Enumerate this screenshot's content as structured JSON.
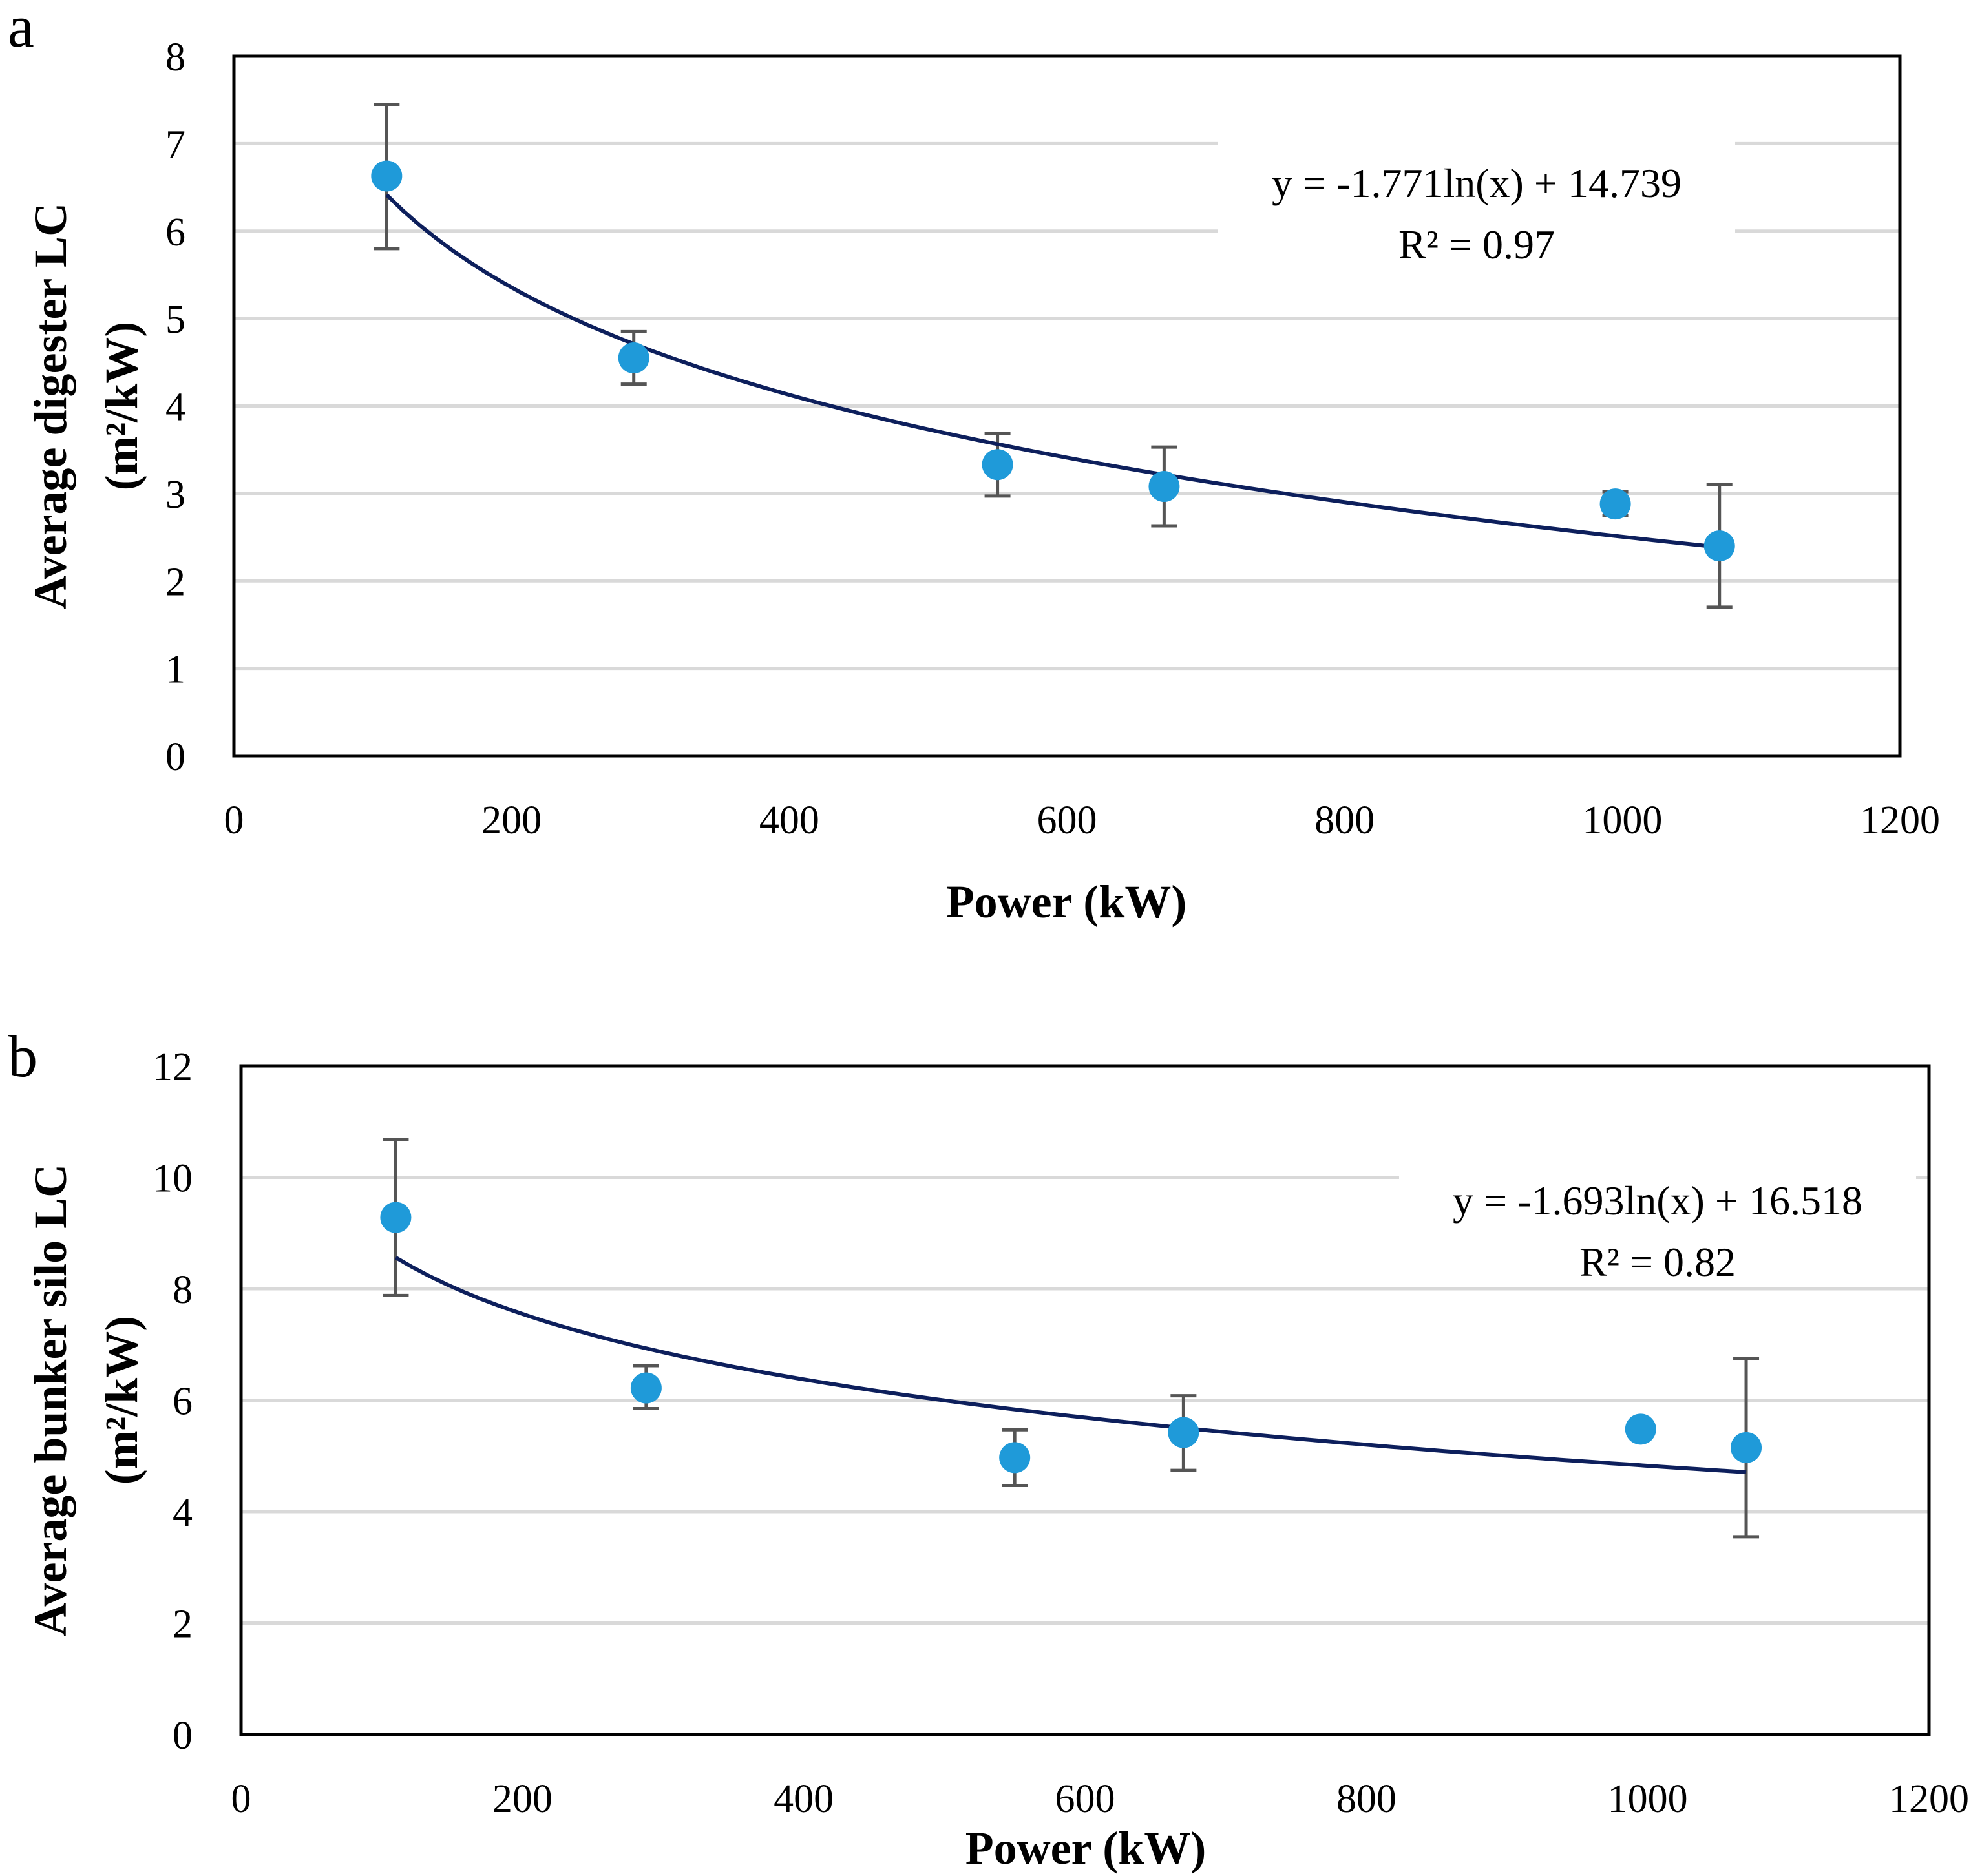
{
  "colors": {
    "marker": "#1f9ad9",
    "trendline": "#0d1f5c",
    "errorbar": "#555555",
    "grid": "#d9d9d9",
    "frame": "#000000"
  },
  "chart_data": [
    {
      "panel": "a",
      "type": "scatter",
      "xlabel": "Power (kW)",
      "ylabel_line1": "Average digester LC",
      "ylabel_line2": "(m²/kW)",
      "xlim": [
        0,
        1200
      ],
      "ylim": [
        0,
        8
      ],
      "xticks": [
        0,
        200,
        400,
        600,
        800,
        1000,
        1200
      ],
      "xtick_labels": [
        "0",
        "200",
        "400",
        "600",
        "800",
        "1000",
        "1200"
      ],
      "yticks": [
        0,
        1,
        2,
        3,
        4,
        5,
        6,
        7,
        8
      ],
      "ytick_labels": [
        "0",
        "1",
        "2",
        "3",
        "4",
        "5",
        "6",
        "7",
        "8"
      ],
      "grid": true,
      "points": [
        {
          "x": 110,
          "y": 6.63,
          "err_low": 5.8,
          "err_high": 7.45
        },
        {
          "x": 288,
          "y": 4.55,
          "err_low": 4.25,
          "err_high": 4.85
        },
        {
          "x": 550,
          "y": 3.33,
          "err_low": 2.97,
          "err_high": 3.69
        },
        {
          "x": 670,
          "y": 3.08,
          "err_low": 2.63,
          "err_high": 3.53
        },
        {
          "x": 995,
          "y": 2.88,
          "err_low": 2.75,
          "err_high": 3.02
        },
        {
          "x": 1070,
          "y": 2.4,
          "err_low": 1.7,
          "err_high": 3.1
        }
      ],
      "trendline": {
        "type": "logarithmic",
        "a": -1.771,
        "b": 14.739,
        "x_start": 110,
        "x_end": 1070
      },
      "equation": "y = -1.771ln(x) + 14.739",
      "r_squared": "R² = 0.97"
    },
    {
      "panel": "b",
      "type": "scatter",
      "xlabel": "Power (kW)",
      "ylabel_line1": "Average bunker silo LC",
      "ylabel_line2": "(m²/kW)",
      "xlim": [
        0,
        1200
      ],
      "ylim": [
        0,
        12
      ],
      "xticks": [
        0,
        200,
        400,
        600,
        800,
        1000,
        1200
      ],
      "xtick_labels": [
        "0",
        "200",
        "400",
        "600",
        "800",
        "1000",
        "1200"
      ],
      "yticks": [
        0,
        2,
        4,
        6,
        8,
        10,
        12
      ],
      "ytick_labels": [
        "0",
        "2",
        "4",
        "6",
        "8",
        "10",
        "12"
      ],
      "grid": true,
      "points": [
        {
          "x": 110,
          "y": 9.28,
          "err_low": 7.88,
          "err_high": 10.68
        },
        {
          "x": 288,
          "y": 6.22,
          "err_low": 5.85,
          "err_high": 6.62
        },
        {
          "x": 550,
          "y": 4.97,
          "err_low": 4.47,
          "err_high": 5.47
        },
        {
          "x": 670,
          "y": 5.42,
          "err_low": 4.74,
          "err_high": 6.08
        },
        {
          "x": 995,
          "y": 5.48,
          "err_low": 5.42,
          "err_high": 5.56
        },
        {
          "x": 1070,
          "y": 5.15,
          "err_low": 3.55,
          "err_high": 6.75
        }
      ],
      "trendline": {
        "type": "logarithmic",
        "a": -1.693,
        "b": 16.518,
        "x_start": 110,
        "x_end": 1070
      },
      "equation": "y = -1.693ln(x) + 16.518",
      "r_squared": "R² = 0.82"
    }
  ]
}
